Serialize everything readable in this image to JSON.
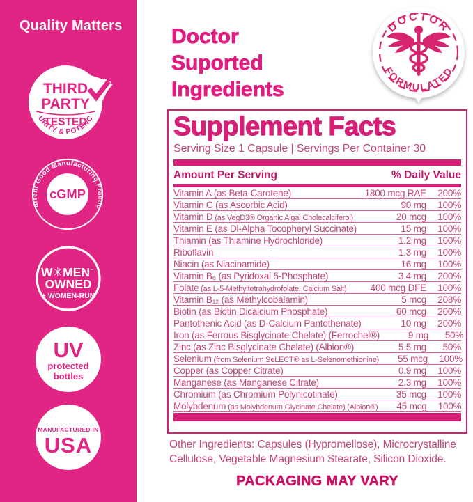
{
  "palette": {
    "sidebar_pink": "#E02585",
    "accent_pink": "#D61F77",
    "row_text_pink": "#C2457C",
    "white": "#FFFFFF"
  },
  "sidebar": {
    "title": "Quality Matters",
    "badges": {
      "third_party": {
        "line1": "THIRD",
        "line2": "PARTY",
        "band": "TESTED",
        "arc": "PURITY & POTENCY"
      },
      "cgmp": {
        "arc": "Current Good Manufacturing Practice",
        "center": "cGMP"
      },
      "women_owned": {
        "line1": "W✳MEN",
        "tm": "™",
        "line2": "OWNED",
        "line3": "+ WOMEN-RUN"
      },
      "uv": {
        "big": "UV",
        "line2": "protected",
        "line3": "bottles"
      },
      "usa": {
        "small": "MANUFACTURED IN",
        "big": "USA"
      }
    }
  },
  "header": {
    "title_lines": [
      "Doctor",
      "Suported",
      "Ingredients"
    ]
  },
  "doctor_badge": {
    "top": "DOCTOR",
    "bottom": "FORMULATED"
  },
  "supplement": {
    "title": "Supplement Facts",
    "serving_line": "Serving Size 1 Capsule | Servings Per Container 30",
    "col_left": "Amount Per Serving",
    "col_right": "% Daily Value",
    "rows": [
      {
        "name": "Vitamin A (as Beta-Carotene)",
        "amount": "1800 mcg RAE",
        "dv": "200%"
      },
      {
        "name": "Vitamin C (as Ascorbic Acid)",
        "amount": "90 mg",
        "dv": "100%"
      },
      {
        "name": "Vitamin D",
        "small": "(as VegD3® Organic Algal Cholecalciferol)",
        "amount": "20 mcg",
        "dv": "100%"
      },
      {
        "name": "Vitamin E (as Dl-Alpha Tocopheryl Succinate)",
        "amount": "15 mg",
        "dv": "100%"
      },
      {
        "name": "Thiamin (as Thiamine Hydrochloride)",
        "amount": "1.2 mg",
        "dv": "100%"
      },
      {
        "name": "Riboflavin",
        "amount": "1.3 mg",
        "dv": "100%"
      },
      {
        "name": "Niacin (as Niacinamide)",
        "amount": "16 mg",
        "dv": "100%"
      },
      {
        "name": "Vitamin B₆ (as Pyridoxal 5-Phosphate)",
        "amount": "3.4 mg",
        "dv": "200%"
      },
      {
        "name": "Folate",
        "small": "(as L-5-Methyltetrahydrofolate, Calcium Salt)",
        "amount": "400 mcg DFE",
        "dv": "100%"
      },
      {
        "name": "Vitamin B₁₂ (as Methylcobalamin)",
        "amount": "5 mcg",
        "dv": "208%"
      },
      {
        "name": "Biotin (as Biotin Dicalcium Phosphate)",
        "amount": "60 mcg",
        "dv": "200%"
      },
      {
        "name": "Pantothenic Acid (as D-Calcium Pantothenate)",
        "amount": "10 mg",
        "dv": "200%"
      },
      {
        "name": "Iron (as Ferrous Bisglycinate Chelate) (Ferrochel®)",
        "amount": "9 mg",
        "dv": "50%"
      },
      {
        "name": "Zinc (as Zinc Bisglycinate Chelate) (Albion®)",
        "amount": "5.5 mg",
        "dv": "50%"
      },
      {
        "name": "Selenium",
        "small": "(from Selenium SeLECT® as L-Selenomethionine)",
        "amount": "55 mcg",
        "dv": "100%"
      },
      {
        "name": "Copper (as Copper Citrate)",
        "amount": "0.9 mg",
        "dv": "100%"
      },
      {
        "name": "Manganese (as Manganese Citrate)",
        "amount": "2.3 mg",
        "dv": "100%"
      },
      {
        "name": "Chromium (as Chromium Polynicotinate)",
        "amount": "35 mcg",
        "dv": "100%"
      },
      {
        "name": "Molybdenum",
        "small": "(as Molybdenum Glycinate Chelate) (Albion®)",
        "amount": "45 mcg",
        "dv": "100%"
      }
    ]
  },
  "footer": {
    "other_ingredients": "Other Ingredients: Capsules (Hypromellose), Microcrystalline Cellulose, Vegetable Magnesium Stearate, Silicon Dioxide.",
    "packaging": "PACKAGING MAY VARY"
  }
}
